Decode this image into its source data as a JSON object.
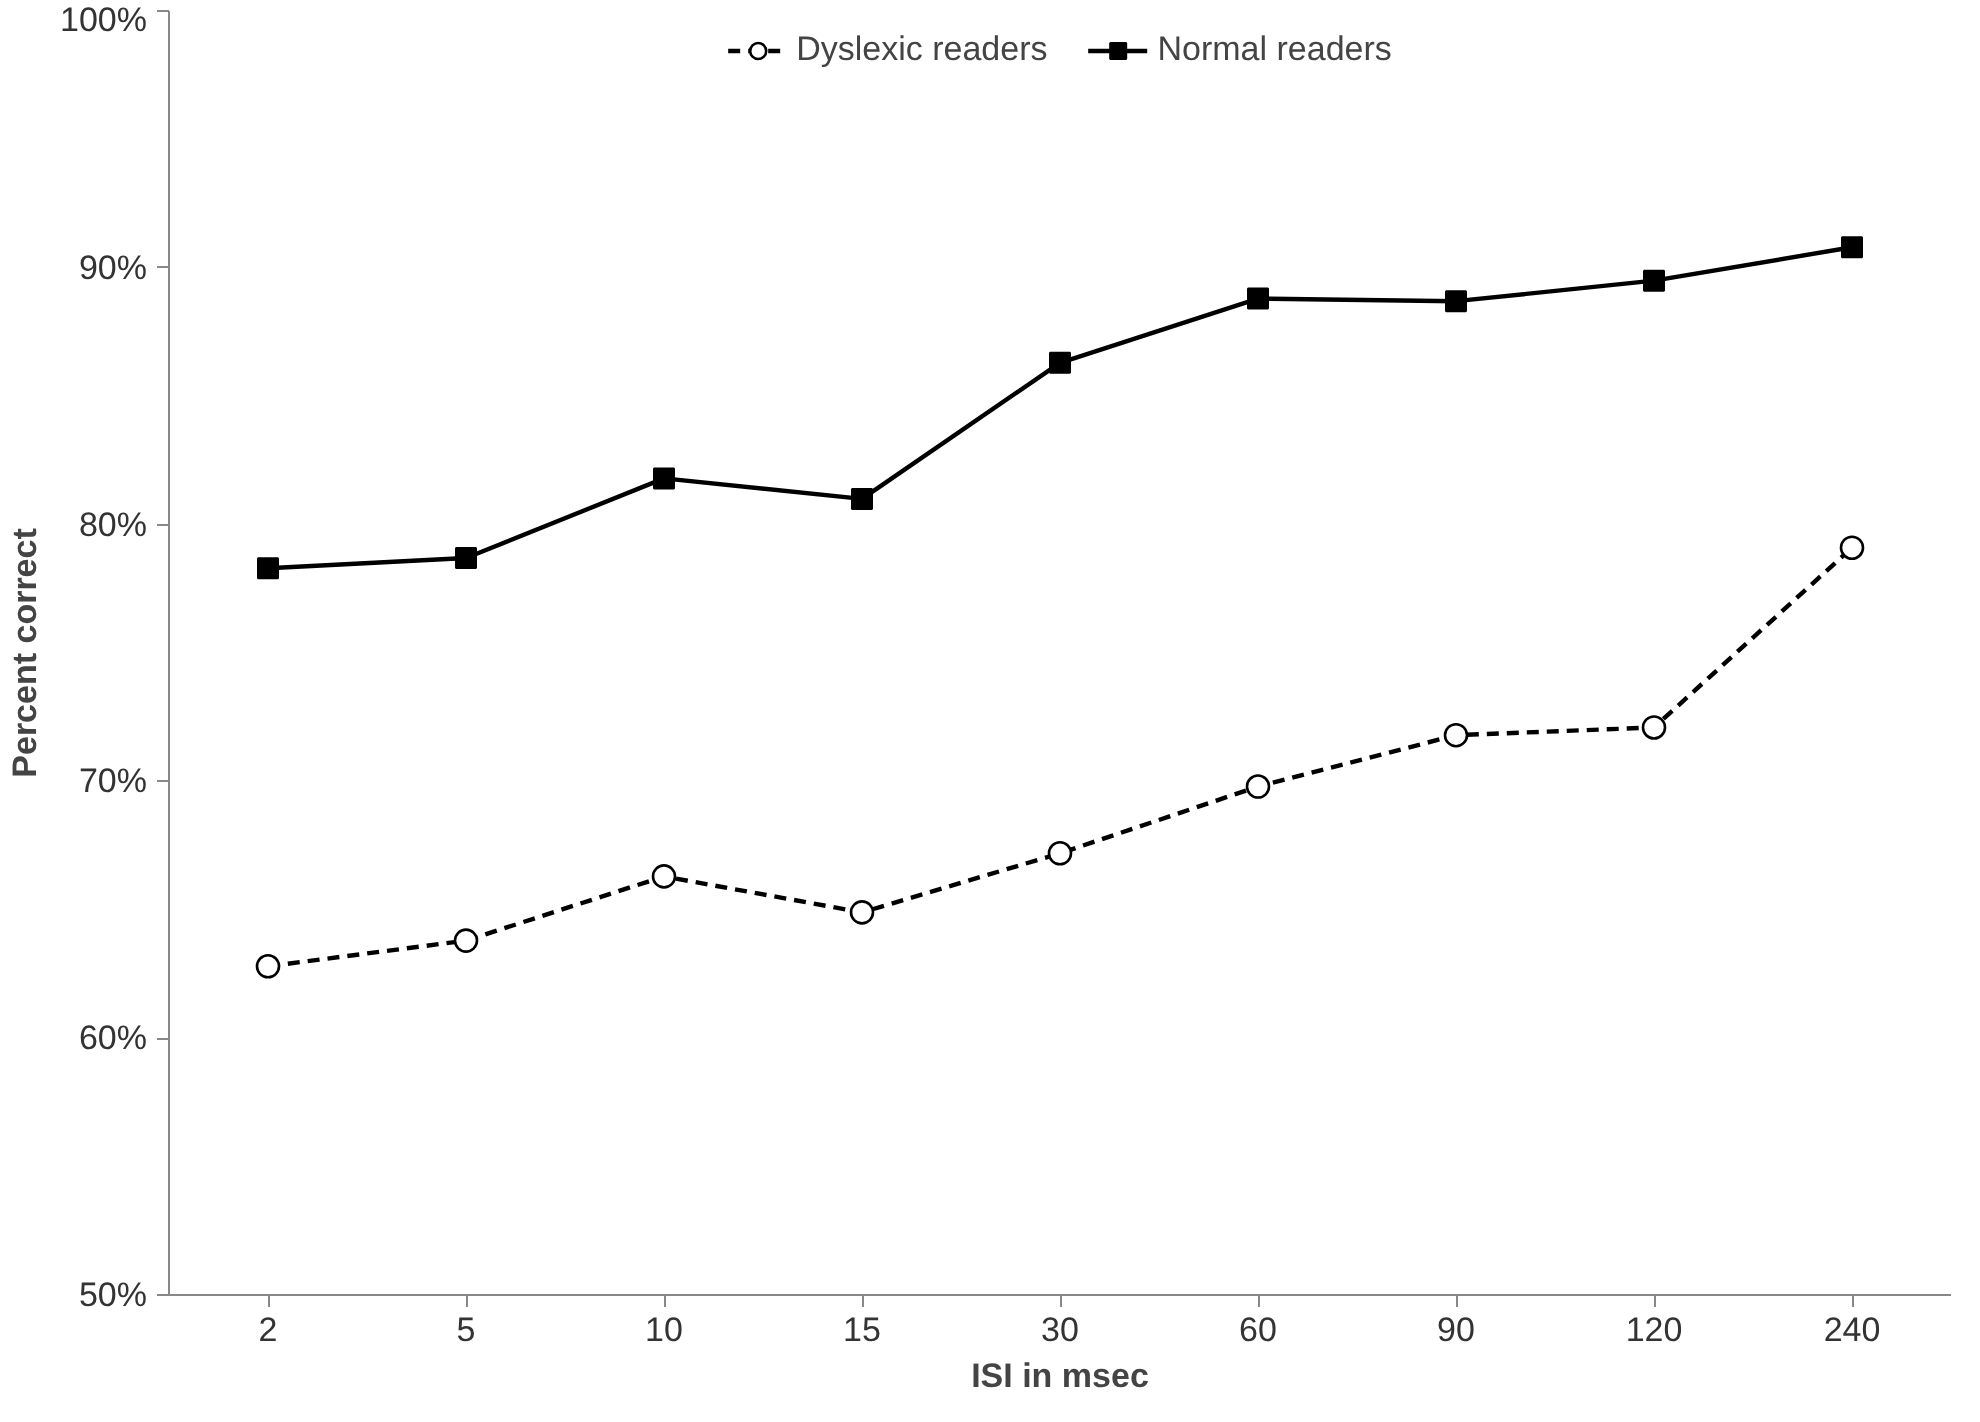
{
  "chart_data": {
    "type": "line",
    "xlabel": "ISI in msec",
    "ylabel": "Percent correct",
    "categories": [
      "2",
      "5",
      "10",
      "15",
      "30",
      "60",
      "90",
      "120",
      "240"
    ],
    "series": [
      {
        "name": "Dyslexic readers",
        "color": "#000000",
        "marker": "circle",
        "line_style": "dashed",
        "values": [
          62.8,
          63.8,
          66.3,
          64.9,
          67.2,
          69.8,
          71.8,
          72.1,
          79.1
        ]
      },
      {
        "name": "Normal readers",
        "color": "#000000",
        "marker": "square",
        "line_style": "solid",
        "values": [
          78.3,
          78.7,
          81.8,
          81.0,
          86.3,
          88.8,
          88.7,
          89.5,
          90.8
        ]
      }
    ],
    "ylim": [
      50,
      100
    ],
    "yticks": [
      {
        "value": 50,
        "label": "50%"
      },
      {
        "value": 60,
        "label": "60%"
      },
      {
        "value": 70,
        "label": "70%"
      },
      {
        "value": 80,
        "label": "80%"
      },
      {
        "value": 90,
        "label": "90%"
      },
      {
        "value": 100,
        "label": "100%"
      }
    ],
    "grid": false,
    "legend": "top"
  }
}
